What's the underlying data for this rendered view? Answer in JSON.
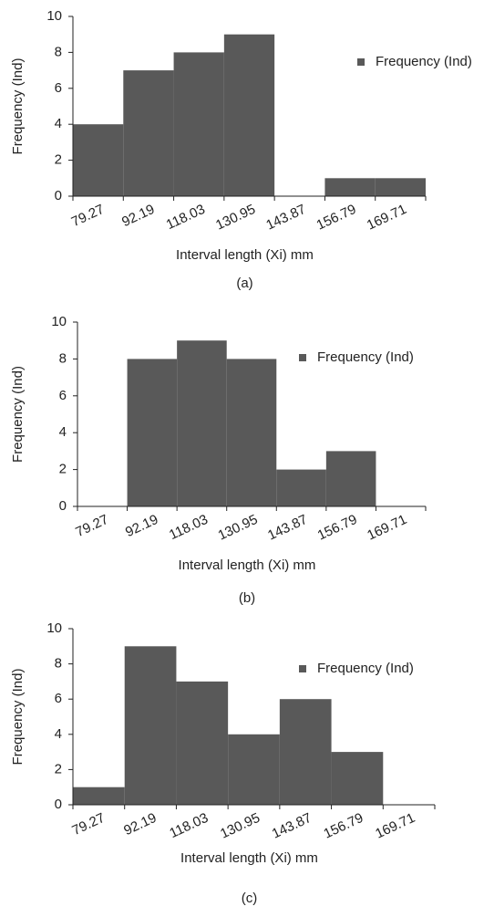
{
  "chart_data": [
    {
      "type": "bar",
      "caption": "(a)",
      "x_label": "Interval length (Xi) mm",
      "y_label": "Frequency (Ind)",
      "categories": [
        "79.27",
        "92.19",
        "118.03",
        "130.95",
        "143.87",
        "156.79",
        "169.71"
      ],
      "series": [
        {
          "name": "Frequency (Ind)",
          "color": "#595959",
          "values": [
            4,
            7,
            8,
            9,
            0,
            1,
            1
          ]
        }
      ],
      "ylim": [
        0,
        10
      ],
      "yticks": [
        0,
        2,
        4,
        6,
        8,
        10
      ]
    },
    {
      "type": "bar",
      "caption": "(b)",
      "x_label": "Interval length (Xi) mm",
      "y_label": "Frequency (Ind)",
      "categories": [
        "79.27",
        "92.19",
        "118.03",
        "130.95",
        "143.87",
        "156.79",
        "169.71"
      ],
      "series": [
        {
          "name": "Frequency (Ind)",
          "color": "#595959",
          "values": [
            0,
            8,
            9,
            8,
            2,
            3,
            0
          ]
        }
      ],
      "ylim": [
        0,
        10
      ],
      "yticks": [
        0,
        2,
        4,
        6,
        8,
        10
      ]
    },
    {
      "type": "bar",
      "caption": "(c)",
      "x_label": "Interval length (Xi) mm",
      "y_label": "Frequency (Ind)",
      "categories": [
        "79.27",
        "92.19",
        "118.03",
        "130.95",
        "143.87",
        "156.79",
        "169.71"
      ],
      "series": [
        {
          "name": "Frequency (Ind)",
          "color": "#595959",
          "values": [
            1,
            9,
            7,
            4,
            6,
            3,
            0
          ]
        }
      ],
      "ylim": [
        0,
        10
      ],
      "yticks": [
        0,
        2,
        4,
        6,
        8,
        10
      ]
    }
  ]
}
